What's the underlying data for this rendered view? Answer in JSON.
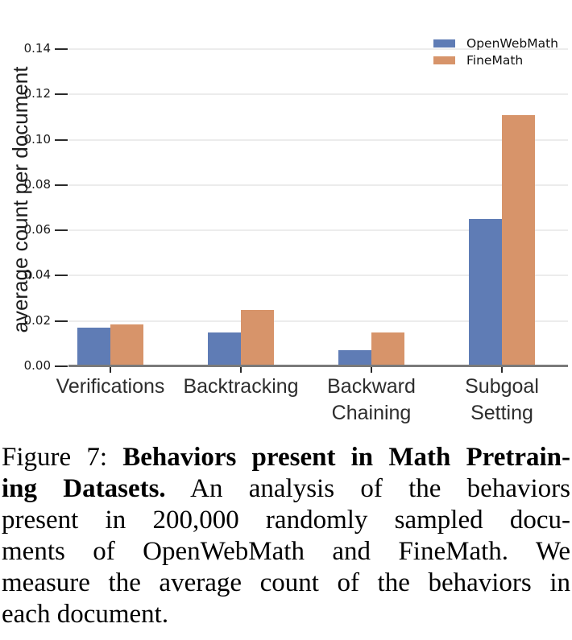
{
  "chart_data": {
    "type": "bar",
    "title": "",
    "categories": [
      "Verifications",
      "Backtracking",
      "Backward\nChaining",
      "Subgoal\nSetting"
    ],
    "series": [
      {
        "name": "OpenWebMath",
        "color": "#5f7cb5",
        "values": [
          0.017,
          0.015,
          0.007,
          0.065
        ]
      },
      {
        "name": "FineMath",
        "color": "#d7946a",
        "values": [
          0.0185,
          0.025,
          0.015,
          0.111
        ]
      }
    ],
    "xlabel": "",
    "ylabel": "average count per document",
    "ylim": [
      0,
      0.145
    ],
    "ytick_values": [
      0,
      0.02,
      0.04,
      0.06,
      0.08,
      0.1,
      0.12,
      0.14
    ],
    "ytick_labels": [
      "0.00",
      "0.02",
      "0.04",
      "0.06",
      "0.08",
      "0.10",
      "0.12",
      "0.14"
    ],
    "grid": "horizontal",
    "legend_position": "upper-right"
  },
  "colors": {
    "openwebmath": "#5f7cb5",
    "finemath": "#d7946a",
    "gridline": "#ececec",
    "axis_line": "#7a7a7a",
    "text": "#1a1a1a"
  },
  "caption": {
    "figure_label": "Figure 7:",
    "lines": [
      {
        "justify": true,
        "segments": [
          {
            "text": "Figure 7: ",
            "bold": false
          },
          {
            "text": "Behaviors present in Math Pretrain-",
            "bold": true
          }
        ]
      },
      {
        "justify": true,
        "segments": [
          {
            "text": "ing Datasets.",
            "bold": true
          },
          {
            "text": " An analysis of the behaviors",
            "bold": false
          }
        ]
      },
      {
        "justify": true,
        "segments": [
          {
            "text": "present in 200,000 randomly sampled docu-",
            "bold": false
          }
        ]
      },
      {
        "justify": true,
        "segments": [
          {
            "text": "ments of OpenWebMath and FineMath. We",
            "bold": false
          }
        ]
      },
      {
        "justify": true,
        "segments": [
          {
            "text": "measure the average count of the behaviors in",
            "bold": false
          }
        ]
      },
      {
        "justify": false,
        "segments": [
          {
            "text": "each document.",
            "bold": false
          }
        ]
      }
    ]
  }
}
